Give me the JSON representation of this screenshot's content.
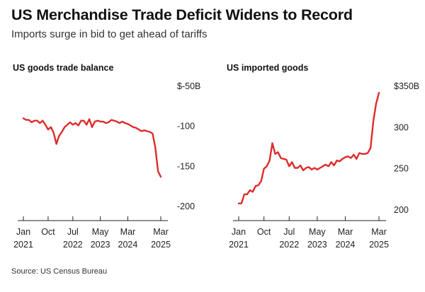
{
  "title": "US Merchandise Trade Deficit Widens to Record",
  "subtitle": "Imports surge in bid to get ahead of tariffs",
  "source": "Source: US Census Bureau",
  "colors": {
    "series": "#dd2c2c",
    "axis": "#222222",
    "text": "#111111"
  },
  "chart_data": [
    {
      "type": "line",
      "title": "US goods trade balance",
      "xlabel": "",
      "ylabel": "",
      "x_ticks": [
        {
          "label": "Jan",
          "sub": "2021",
          "x": 2021.0
        },
        {
          "label": "Oct",
          "sub": "",
          "x": 2021.75
        },
        {
          "label": "Jul",
          "sub": "2022",
          "x": 2022.5
        },
        {
          "label": "May",
          "sub": "2023",
          "x": 2023.333
        },
        {
          "label": "Mar",
          "sub": "2024",
          "x": 2024.167
        },
        {
          "label": "Mar",
          "sub": "2025",
          "x": 2025.167
        }
      ],
      "y_ticks": [
        {
          "label": "$-50B",
          "y": -50
        },
        {
          "label": "-100",
          "y": -100
        },
        {
          "label": "-150",
          "y": -150
        },
        {
          "label": "-200",
          "y": -200
        }
      ],
      "xlim": [
        2021.0,
        2025.167
      ],
      "ylim": [
        -200,
        -50
      ],
      "series": [
        {
          "x": [
            2021.0,
            2021.083,
            2021.167,
            2021.25,
            2021.333,
            2021.417,
            2021.5,
            2021.583,
            2021.667,
            2021.75,
            2021.833,
            2021.917,
            2022.0,
            2022.083,
            2022.167,
            2022.25,
            2022.333,
            2022.417,
            2022.5,
            2022.583,
            2022.667,
            2022.75,
            2022.833,
            2022.917,
            2023.0,
            2023.083,
            2023.167,
            2023.25,
            2023.333,
            2023.417,
            2023.5,
            2023.583,
            2023.667,
            2023.75,
            2023.833,
            2023.917,
            2024.0,
            2024.083,
            2024.167,
            2024.25,
            2024.333,
            2024.417,
            2024.5,
            2024.583,
            2024.667,
            2024.75,
            2024.833,
            2024.917,
            2025.0,
            2025.083,
            2025.167
          ],
          "values": [
            -90,
            -92,
            -92,
            -95,
            -93,
            -93,
            -96,
            -93,
            -98,
            -104,
            -101,
            -108,
            -122,
            -112,
            -107,
            -101,
            -98,
            -95,
            -98,
            -96,
            -99,
            -93,
            -93,
            -98,
            -91,
            -101,
            -94,
            -93,
            -94,
            -94,
            -96,
            -95,
            -92,
            -93,
            -94,
            -96,
            -94,
            -96,
            -97,
            -99,
            -101,
            -102,
            -104,
            -106,
            -105,
            -106,
            -107,
            -109,
            -126,
            -156,
            -163
          ]
        }
      ]
    },
    {
      "type": "line",
      "title": "US imported goods",
      "xlabel": "",
      "ylabel": "",
      "x_ticks": [
        {
          "label": "Jan",
          "sub": "2021",
          "x": 2021.0
        },
        {
          "label": "Oct",
          "sub": "",
          "x": 2021.75
        },
        {
          "label": "Jul",
          "sub": "2022",
          "x": 2022.5
        },
        {
          "label": "May",
          "sub": "2023",
          "x": 2023.333
        },
        {
          "label": "Mar",
          "sub": "2024",
          "x": 2024.167
        },
        {
          "label": "Mar",
          "sub": "2025",
          "x": 2025.167
        }
      ],
      "y_ticks": [
        {
          "label": "$350B",
          "y": 350
        },
        {
          "label": "300",
          "y": 300
        },
        {
          "label": "250",
          "y": 250
        },
        {
          "label": "200",
          "y": 200
        }
      ],
      "xlim": [
        2021.0,
        2025.167
      ],
      "ylim": [
        200,
        350
      ],
      "series": [
        {
          "x": [
            2021.0,
            2021.083,
            2021.167,
            2021.25,
            2021.333,
            2021.417,
            2021.5,
            2021.583,
            2021.667,
            2021.75,
            2021.833,
            2021.917,
            2022.0,
            2022.083,
            2022.167,
            2022.25,
            2022.333,
            2022.417,
            2022.5,
            2022.583,
            2022.667,
            2022.75,
            2022.833,
            2022.917,
            2023.0,
            2023.083,
            2023.167,
            2023.25,
            2023.333,
            2023.417,
            2023.5,
            2023.583,
            2023.667,
            2023.75,
            2023.833,
            2023.917,
            2024.0,
            2024.083,
            2024.167,
            2024.25,
            2024.333,
            2024.417,
            2024.5,
            2024.583,
            2024.667,
            2024.75,
            2024.833,
            2024.917,
            2025.0,
            2025.083,
            2025.167
          ],
          "values": [
            208,
            208,
            219,
            219,
            224,
            222,
            229,
            230,
            235,
            250,
            253,
            260,
            281,
            268,
            270,
            263,
            262,
            261,
            253,
            258,
            251,
            251,
            254,
            248,
            251,
            252,
            249,
            251,
            249,
            251,
            253,
            255,
            253,
            258,
            254,
            260,
            259,
            262,
            264,
            265,
            263,
            267,
            262,
            269,
            268,
            268,
            269,
            275,
            308,
            329,
            342
          ]
        }
      ]
    }
  ]
}
